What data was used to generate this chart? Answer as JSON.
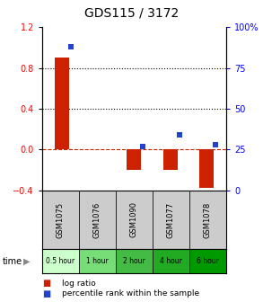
{
  "title": "GDS115 / 3172",
  "samples": [
    "GSM1075",
    "GSM1076",
    "GSM1090",
    "GSM1077",
    "GSM1078"
  ],
  "time_labels": [
    "0.5 hour",
    "1 hour",
    "2 hour",
    "4 hour",
    "6 hour"
  ],
  "time_colors": [
    "#ccffcc",
    "#77dd77",
    "#44bb44",
    "#22aa22",
    "#009900"
  ],
  "log_ratios": [
    0.9,
    0.0,
    -0.2,
    -0.2,
    -0.38
  ],
  "percentile_ranks": [
    88,
    0,
    27,
    34,
    28
  ],
  "ylim_left": [
    -0.4,
    1.2
  ],
  "ylim_right": [
    0,
    100
  ],
  "left_ticks": [
    -0.4,
    0.0,
    0.4,
    0.8,
    1.2
  ],
  "right_ticks": [
    0,
    25,
    50,
    75,
    100
  ],
  "bar_color": "#cc2200",
  "dot_color": "#2244cc",
  "zero_line_color": "#cc2200",
  "grid_color": "#000000",
  "bg_color": "#ffffff",
  "sample_box_color": "#cccccc",
  "legend_bar_label": "log ratio",
  "legend_dot_label": "percentile rank within the sample",
  "time_row_label": "time"
}
